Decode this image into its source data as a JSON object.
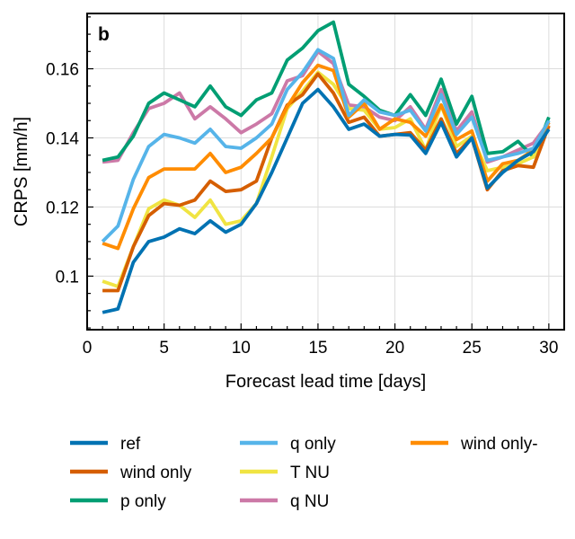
{
  "chart_data": {
    "type": "line",
    "panel_label": "b",
    "title": "",
    "xlabel": "Forecast lead time [days]",
    "ylabel": "CRPS [mm/h]",
    "xlim": [
      0,
      31
    ],
    "ylim": [
      0.0845,
      0.176
    ],
    "xticks": [
      0,
      5,
      10,
      15,
      20,
      25,
      30
    ],
    "yticks": [
      0.1,
      0.12,
      0.14,
      0.16
    ],
    "ytick_labels": [
      "0.1",
      "0.12",
      "0.14",
      "0.16"
    ],
    "grid": true,
    "legend_position": "bottom",
    "x": [
      1,
      2,
      3,
      4,
      5,
      6,
      7,
      8,
      9,
      10,
      11,
      12,
      13,
      14,
      15,
      16,
      17,
      18,
      19,
      20,
      21,
      22,
      23,
      24,
      25,
      26,
      27,
      28,
      29,
      30
    ],
    "series": [
      {
        "name": "ref",
        "color": "#0072B2",
        "values": [
          0.0895,
          0.0905,
          0.104,
          0.11,
          0.1113,
          0.1137,
          0.1123,
          0.116,
          0.1127,
          0.115,
          0.121,
          0.13,
          0.14,
          0.15,
          0.154,
          0.149,
          0.1425,
          0.144,
          0.1405,
          0.141,
          0.1408,
          0.1355,
          0.1445,
          0.1345,
          0.14,
          0.1255,
          0.13,
          0.1335,
          0.136,
          0.1425
        ]
      },
      {
        "name": "q only",
        "color": "#56B4E9",
        "values": [
          0.11,
          0.1145,
          0.128,
          0.1375,
          0.141,
          0.14,
          0.1385,
          0.1425,
          0.1375,
          0.137,
          0.14,
          0.144,
          0.154,
          0.159,
          0.1655,
          0.163,
          0.1465,
          0.151,
          0.1475,
          0.1465,
          0.148,
          0.142,
          0.1525,
          0.141,
          0.146,
          0.1335,
          0.1345,
          0.1355,
          0.137,
          0.145
        ]
      },
      {
        "name": "wind only-",
        "color": "#FF8C00",
        "values": [
          0.1095,
          0.108,
          0.1195,
          0.1285,
          0.131,
          0.131,
          0.131,
          0.1355,
          0.13,
          0.1315,
          0.1355,
          0.14,
          0.149,
          0.156,
          0.161,
          0.1595,
          0.146,
          0.15,
          0.1425,
          0.1455,
          0.1445,
          0.1405,
          0.1495,
          0.1395,
          0.142,
          0.1275,
          0.1325,
          0.1335,
          0.1365,
          0.1445
        ]
      },
      {
        "name": "wind only",
        "color": "#D55E00",
        "values": [
          0.0958,
          0.0958,
          0.1085,
          0.1175,
          0.121,
          0.1205,
          0.122,
          0.1275,
          0.1245,
          0.125,
          0.1275,
          0.14,
          0.1495,
          0.1525,
          0.1585,
          0.153,
          0.1445,
          0.146,
          0.1405,
          0.141,
          0.1415,
          0.1365,
          0.1455,
          0.1355,
          0.14,
          0.125,
          0.1305,
          0.132,
          0.1315,
          0.1435
        ]
      },
      {
        "name": "T NU",
        "color": "#F0E442",
        "values": [
          0.0985,
          0.097,
          0.1085,
          0.1195,
          0.122,
          0.1205,
          0.117,
          0.122,
          0.115,
          0.116,
          0.121,
          0.1345,
          0.1485,
          0.1535,
          0.159,
          0.1555,
          0.1485,
          0.148,
          0.1425,
          0.143,
          0.1455,
          0.1365,
          0.1495,
          0.1375,
          0.1405,
          0.1305,
          0.1315,
          0.1325,
          0.1345,
          0.1435
        ]
      },
      {
        "name": "p only",
        "color": "#009E73",
        "values": [
          0.1335,
          0.1345,
          0.1405,
          0.15,
          0.153,
          0.151,
          0.149,
          0.155,
          0.149,
          0.1465,
          0.151,
          0.153,
          0.1625,
          0.166,
          0.171,
          0.1735,
          0.1555,
          0.152,
          0.148,
          0.1465,
          0.1525,
          0.1465,
          0.157,
          0.144,
          0.152,
          0.1355,
          0.136,
          0.139,
          0.1345,
          0.146
        ]
      },
      {
        "name": "q NU",
        "color": "#CC79A7",
        "values": [
          0.133,
          0.1335,
          0.1415,
          0.1485,
          0.15,
          0.153,
          0.1455,
          0.149,
          0.1455,
          0.1415,
          0.144,
          0.147,
          0.1565,
          0.158,
          0.165,
          0.1615,
          0.1495,
          0.149,
          0.146,
          0.145,
          0.149,
          0.1425,
          0.154,
          0.142,
          0.1475,
          0.133,
          0.1345,
          0.1365,
          0.1385,
          0.1445
        ]
      }
    ],
    "draw_order": [
      6,
      5,
      4,
      3,
      2,
      1,
      0
    ],
    "legend_order": [
      0,
      3,
      5,
      1,
      4,
      6,
      2
    ]
  }
}
